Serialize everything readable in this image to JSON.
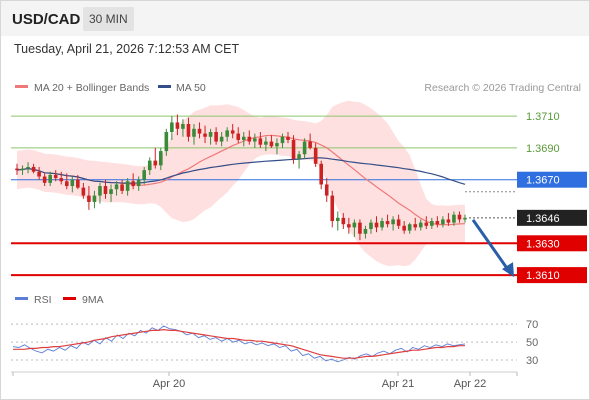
{
  "header": {
    "symbol": "USD/CAD",
    "timeframe": "30 MIN"
  },
  "datetime": "Tuesday, April 21, 2026 7:12:53 AM CET",
  "legend": {
    "ma20": "MA 20 + Bollinger Bands",
    "ma50": "MA 50",
    "copyright": "Research © 2026 Trading Central"
  },
  "rsi_legend": {
    "rsi": "RSI",
    "ma9": "9MA"
  },
  "colors": {
    "up": "#3a8a3a",
    "down": "#cc2222",
    "ma20": "#f07878",
    "ma50": "#334e88",
    "band": "#ffd6d6",
    "resistance": "#8ec46c",
    "pivot": "#2f6fe0",
    "support": "#e00000",
    "rsi": "#5b7fd6",
    "price_tag": "#222222"
  },
  "chart_data": [
    {
      "type": "candlestick",
      "ylim": [
        1.36,
        1.3722
      ],
      "x_ticks": [
        "Apr 20",
        "Apr 21",
        "Apr 22"
      ],
      "current_price": 1.3646,
      "levels": [
        {
          "label": "1.3710",
          "value": 1.371,
          "kind": "resistance"
        },
        {
          "label": "1.3690",
          "value": 1.369,
          "kind": "resistance"
        },
        {
          "label": "1.3670",
          "value": 1.367,
          "kind": "pivot"
        },
        {
          "label": "1.3630",
          "value": 1.363,
          "kind": "support"
        },
        {
          "label": "1.3610",
          "value": 1.361,
          "kind": "support"
        }
      ],
      "price_label": "1.3646",
      "forecast_target": 1.361,
      "candles": [
        [
          1.3677,
          1.368,
          1.3673,
          1.3676
        ],
        [
          1.3676,
          1.3679,
          1.3673,
          1.3677
        ],
        [
          1.3677,
          1.3681,
          1.3674,
          1.3678
        ],
        [
          1.3678,
          1.368,
          1.3674,
          1.3675
        ],
        [
          1.3675,
          1.3678,
          1.367,
          1.3672
        ],
        [
          1.3672,
          1.3674,
          1.3666,
          1.3668
        ],
        [
          1.3668,
          1.3675,
          1.3666,
          1.3673
        ],
        [
          1.3673,
          1.3676,
          1.3669,
          1.3671
        ],
        [
          1.3671,
          1.3675,
          1.3667,
          1.3669
        ],
        [
          1.3669,
          1.3674,
          1.3664,
          1.3666
        ],
        [
          1.3666,
          1.3672,
          1.3662,
          1.367
        ],
        [
          1.367,
          1.3673,
          1.3664,
          1.3665
        ],
        [
          1.3665,
          1.3668,
          1.3658,
          1.366
        ],
        [
          1.366,
          1.3666,
          1.3651,
          1.3656
        ],
        [
          1.3656,
          1.3663,
          1.3652,
          1.366
        ],
        [
          1.366,
          1.3668,
          1.3655,
          1.3666
        ],
        [
          1.3666,
          1.367,
          1.3658,
          1.3661
        ],
        [
          1.3661,
          1.3667,
          1.3656,
          1.3664
        ],
        [
          1.3664,
          1.3669,
          1.366,
          1.3667
        ],
        [
          1.3667,
          1.367,
          1.3661,
          1.3663
        ],
        [
          1.3663,
          1.3671,
          1.366,
          1.3669
        ],
        [
          1.3669,
          1.3674,
          1.3664,
          1.3666
        ],
        [
          1.3666,
          1.3672,
          1.3663,
          1.367
        ],
        [
          1.367,
          1.3678,
          1.3667,
          1.3676
        ],
        [
          1.3676,
          1.3684,
          1.3673,
          1.3682
        ],
        [
          1.3682,
          1.369,
          1.3677,
          1.3679
        ],
        [
          1.3679,
          1.369,
          1.3676,
          1.3688
        ],
        [
          1.3688,
          1.3702,
          1.3685,
          1.37
        ],
        [
          1.37,
          1.371,
          1.3695,
          1.3706
        ],
        [
          1.3706,
          1.3711,
          1.3698,
          1.3702
        ],
        [
          1.3702,
          1.3708,
          1.3697,
          1.3705
        ],
        [
          1.3705,
          1.3709,
          1.3694,
          1.3697
        ],
        [
          1.3697,
          1.3705,
          1.3692,
          1.3702
        ],
        [
          1.3702,
          1.3706,
          1.3696,
          1.3699
        ],
        [
          1.3699,
          1.3704,
          1.3693,
          1.3697
        ],
        [
          1.3697,
          1.3702,
          1.3692,
          1.37
        ],
        [
          1.37,
          1.3703,
          1.3692,
          1.3694
        ],
        [
          1.3694,
          1.37,
          1.3691,
          1.3697
        ],
        [
          1.3697,
          1.3703,
          1.3694,
          1.3701
        ],
        [
          1.3701,
          1.3705,
          1.3696,
          1.3699
        ],
        [
          1.3699,
          1.3703,
          1.3693,
          1.3695
        ],
        [
          1.3695,
          1.37,
          1.3691,
          1.3697
        ],
        [
          1.3697,
          1.3701,
          1.3692,
          1.3694
        ],
        [
          1.3694,
          1.3699,
          1.369,
          1.3696
        ],
        [
          1.3696,
          1.37,
          1.369,
          1.3692
        ],
        [
          1.3692,
          1.3697,
          1.3688,
          1.3694
        ],
        [
          1.3694,
          1.3698,
          1.369,
          1.3691
        ],
        [
          1.3691,
          1.3696,
          1.3686,
          1.3693
        ],
        [
          1.3693,
          1.3699,
          1.369,
          1.3697
        ],
        [
          1.3697,
          1.37,
          1.3693,
          1.3695
        ],
        [
          1.3695,
          1.3698,
          1.368,
          1.3683
        ],
        [
          1.3683,
          1.3688,
          1.3677,
          1.3686
        ],
        [
          1.3686,
          1.3696,
          1.3683,
          1.3694
        ],
        [
          1.3694,
          1.3699,
          1.3689,
          1.369
        ],
        [
          1.369,
          1.3693,
          1.3678,
          1.368
        ],
        [
          1.368,
          1.3682,
          1.3664,
          1.3667
        ],
        [
          1.3667,
          1.3671,
          1.3656,
          1.366
        ],
        [
          1.366,
          1.3663,
          1.364,
          1.3644
        ],
        [
          1.3644,
          1.365,
          1.3638,
          1.3646
        ],
        [
          1.3646,
          1.3649,
          1.3639,
          1.3642
        ],
        [
          1.3642,
          1.3646,
          1.3636,
          1.364
        ],
        [
          1.364,
          1.3645,
          1.3634,
          1.3643
        ],
        [
          1.3643,
          1.3645,
          1.3632,
          1.3636
        ],
        [
          1.3636,
          1.3641,
          1.3633,
          1.3639
        ],
        [
          1.3639,
          1.3645,
          1.3636,
          1.3643
        ],
        [
          1.3643,
          1.3647,
          1.3637,
          1.364
        ],
        [
          1.364,
          1.3646,
          1.3638,
          1.3644
        ],
        [
          1.3644,
          1.3648,
          1.364,
          1.3642
        ],
        [
          1.3642,
          1.3647,
          1.3638,
          1.3645
        ],
        [
          1.3645,
          1.3648,
          1.3639,
          1.3641
        ],
        [
          1.3641,
          1.3644,
          1.3636,
          1.3638
        ],
        [
          1.3638,
          1.3643,
          1.3636,
          1.3642
        ],
        [
          1.3642,
          1.3646,
          1.3638,
          1.364
        ],
        [
          1.364,
          1.3645,
          1.3638,
          1.3643
        ],
        [
          1.3643,
          1.3647,
          1.3639,
          1.3641
        ],
        [
          1.3641,
          1.3646,
          1.3639,
          1.3644
        ],
        [
          1.3644,
          1.3647,
          1.364,
          1.3642
        ],
        [
          1.3642,
          1.3647,
          1.364,
          1.3645
        ],
        [
          1.3645,
          1.3649,
          1.3641,
          1.3643
        ],
        [
          1.3643,
          1.365,
          1.3641,
          1.3648
        ],
        [
          1.3648,
          1.365,
          1.3643,
          1.3645
        ],
        [
          1.3645,
          1.3648,
          1.3643,
          1.3646
        ]
      ]
    },
    {
      "type": "line",
      "title": "RSI",
      "ylim": [
        20,
        78
      ],
      "y_ticks": [
        "70",
        "50",
        "30"
      ],
      "series": [
        {
          "name": "RSI",
          "values": [
            45,
            44,
            47,
            43,
            40,
            38,
            42,
            40,
            44,
            41,
            46,
            43,
            50,
            47,
            52,
            48,
            55,
            51,
            58,
            54,
            60,
            57,
            63,
            60,
            66,
            63,
            68,
            65,
            64,
            62,
            58,
            60,
            55,
            57,
            53,
            55,
            51,
            54,
            50,
            52,
            48,
            50,
            47,
            49,
            46,
            48,
            44,
            46,
            40,
            42,
            35,
            37,
            32,
            34,
            29,
            31,
            28,
            30,
            33,
            31,
            35,
            37,
            34,
            38,
            40,
            37,
            41,
            43,
            39,
            44,
            42,
            46,
            44,
            47,
            45,
            48,
            46,
            47,
            48
          ]
        },
        {
          "name": "9MA",
          "values": [
            42,
            42,
            42,
            43,
            43,
            44,
            44,
            45,
            45,
            46,
            47,
            48,
            49,
            50,
            52,
            53,
            54,
            56,
            57,
            58,
            59,
            60,
            61,
            62,
            63,
            63,
            64,
            63,
            63,
            62,
            61,
            60,
            59,
            58,
            57,
            56,
            55,
            54,
            54,
            53,
            52,
            52,
            51,
            51,
            50,
            49,
            48,
            47,
            46,
            44,
            42,
            40,
            38,
            36,
            35,
            34,
            33,
            32,
            32,
            32,
            33,
            34,
            34,
            35,
            36,
            37,
            38,
            39,
            40,
            41,
            41,
            42,
            43,
            44,
            44,
            45,
            45,
            46,
            46
          ]
        }
      ]
    }
  ]
}
